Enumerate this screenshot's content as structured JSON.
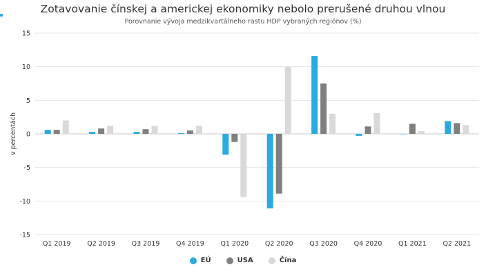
{
  "colors": {
    "accent": "#29abe2",
    "eu": "#29abe2",
    "usa": "#7f7f7f",
    "cina": "#d9d9d9",
    "grid": "#e6e6e6",
    "zero": "#c8c8c8"
  },
  "chart_data": {
    "type": "bar",
    "title": "Zotavovanie čínskej a americkej ekonomiky nebolo prerušené druhou vlnou",
    "subtitle": "Porovnanie vývoja medzikvartálneho rastu HDP vybraných regiónov (%)",
    "ylabel": "v percentách",
    "xlabel": "",
    "ylim": [
      -15,
      15
    ],
    "yticks": [
      -15,
      -10,
      -5,
      0,
      5,
      10,
      15
    ],
    "ytick_labels": [
      "-15",
      "-10",
      "-5",
      "0",
      "5",
      "10",
      "15"
    ],
    "grid": true,
    "legend_position": "bottom",
    "categories": [
      "Q1 2019",
      "Q2 2019",
      "Q3 2019",
      "Q4 2019",
      "Q1 2020",
      "Q2 2020",
      "Q3 2020",
      "Q4 2020",
      "Q1 2021",
      "Q2 2021"
    ],
    "series": [
      {
        "name": "EÚ",
        "color": "#29abe2",
        "values": [
          0.6,
          0.3,
          0.3,
          0.1,
          -3.1,
          -11.1,
          11.6,
          -0.3,
          0.0,
          1.9
        ]
      },
      {
        "name": "USA",
        "color": "#7f7f7f",
        "values": [
          0.6,
          0.8,
          0.7,
          0.5,
          -1.2,
          -8.9,
          7.5,
          1.1,
          1.5,
          1.6
        ]
      },
      {
        "name": "Čína",
        "color": "#d9d9d9",
        "values": [
          2.0,
          1.2,
          1.2,
          1.2,
          -9.4,
          10.0,
          3.0,
          3.1,
          0.4,
          1.3
        ]
      }
    ]
  }
}
